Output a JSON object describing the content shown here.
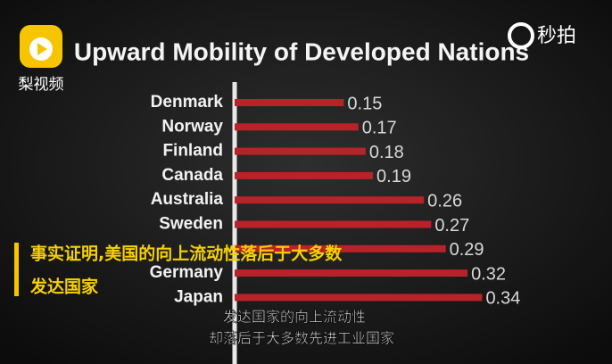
{
  "chart_data": {
    "type": "bar",
    "orientation": "horizontal",
    "title": "Upward Mobility of Developed Nations",
    "categories": [
      "Denmark",
      "Norway",
      "Finland",
      "Canada",
      "Australia",
      "Sweden",
      null,
      "Germany",
      "Japan"
    ],
    "values": [
      0.15,
      0.17,
      0.18,
      0.19,
      0.26,
      0.27,
      0.29,
      0.32,
      0.34
    ],
    "color": "#b8232a"
  },
  "overlay": {
    "logo_text": "梨视频",
    "watermark": "秒拍",
    "caption_lines": [
      "事实证明,美国的向上流动性落后于大多数",
      "发达国家"
    ],
    "subtitle_lines": [
      "发达国家的向上流动性",
      "却落后于大多数先进工业国家"
    ]
  }
}
